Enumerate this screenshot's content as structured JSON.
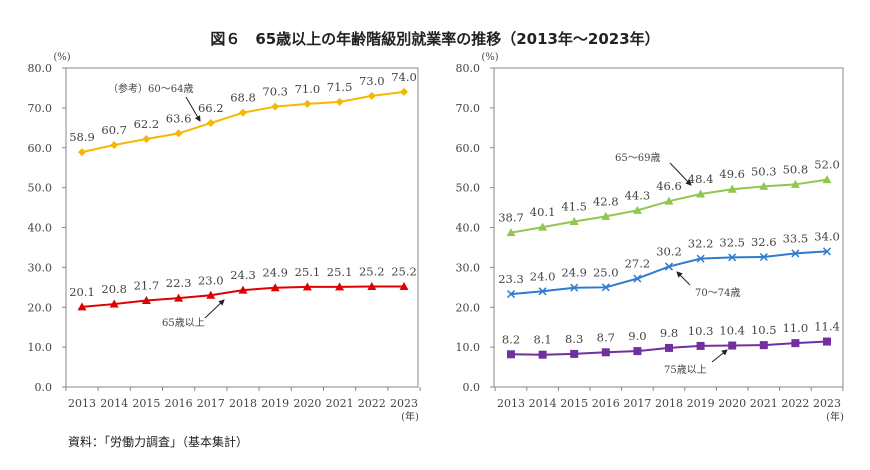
{
  "title": "図６　65歳以上の年齢階級別就業率の推移（2013年～2023年）",
  "source": "資料：「労働力調査」（基本集計）",
  "chart_data": [
    {
      "type": "line",
      "categories": [
        "2013",
        "2014",
        "2015",
        "2016",
        "2017",
        "2018",
        "2019",
        "2020",
        "2021",
        "2022",
        "2023"
      ],
      "ylim": [
        0,
        80
      ],
      "yticks": [
        0,
        10,
        20,
        30,
        40,
        50,
        60,
        70,
        80
      ],
      "yunit": "(%)",
      "xunit": "(年)",
      "grid": false,
      "series": [
        {
          "name": "（参考）60～64歳",
          "color": "#F5B800",
          "marker": "diamond",
          "values": [
            58.9,
            60.7,
            62.2,
            63.6,
            66.2,
            68.8,
            70.3,
            71.0,
            71.5,
            73.0,
            74.0
          ]
        },
        {
          "name": "65歳以上",
          "color": "#E00000",
          "marker": "triangle",
          "values": [
            20.1,
            20.8,
            21.7,
            22.3,
            23.0,
            24.3,
            24.9,
            25.1,
            25.1,
            25.2,
            25.2
          ]
        }
      ]
    },
    {
      "type": "line",
      "categories": [
        "2013",
        "2014",
        "2015",
        "2016",
        "2017",
        "2018",
        "2019",
        "2020",
        "2021",
        "2022",
        "2023"
      ],
      "ylim": [
        0,
        80
      ],
      "yticks": [
        0,
        10,
        20,
        30,
        40,
        50,
        60,
        70,
        80
      ],
      "yunit": "(%)",
      "xunit": "(年)",
      "grid": false,
      "series": [
        {
          "name": "65～69歳",
          "color": "#92C64E",
          "marker": "triangle",
          "values": [
            38.7,
            40.1,
            41.5,
            42.8,
            44.3,
            46.6,
            48.4,
            49.6,
            50.3,
            50.8,
            52.0
          ]
        },
        {
          "name": "70～74歳",
          "color": "#2E7BCF",
          "marker": "x",
          "values": [
            23.3,
            24.0,
            24.9,
            25.0,
            27.2,
            30.2,
            32.2,
            32.5,
            32.6,
            33.5,
            34.0
          ]
        },
        {
          "name": "75歳以上",
          "color": "#7030A0",
          "marker": "square",
          "values": [
            8.2,
            8.1,
            8.3,
            8.7,
            9.0,
            9.8,
            10.3,
            10.4,
            10.5,
            11.0,
            11.4
          ]
        }
      ]
    }
  ]
}
